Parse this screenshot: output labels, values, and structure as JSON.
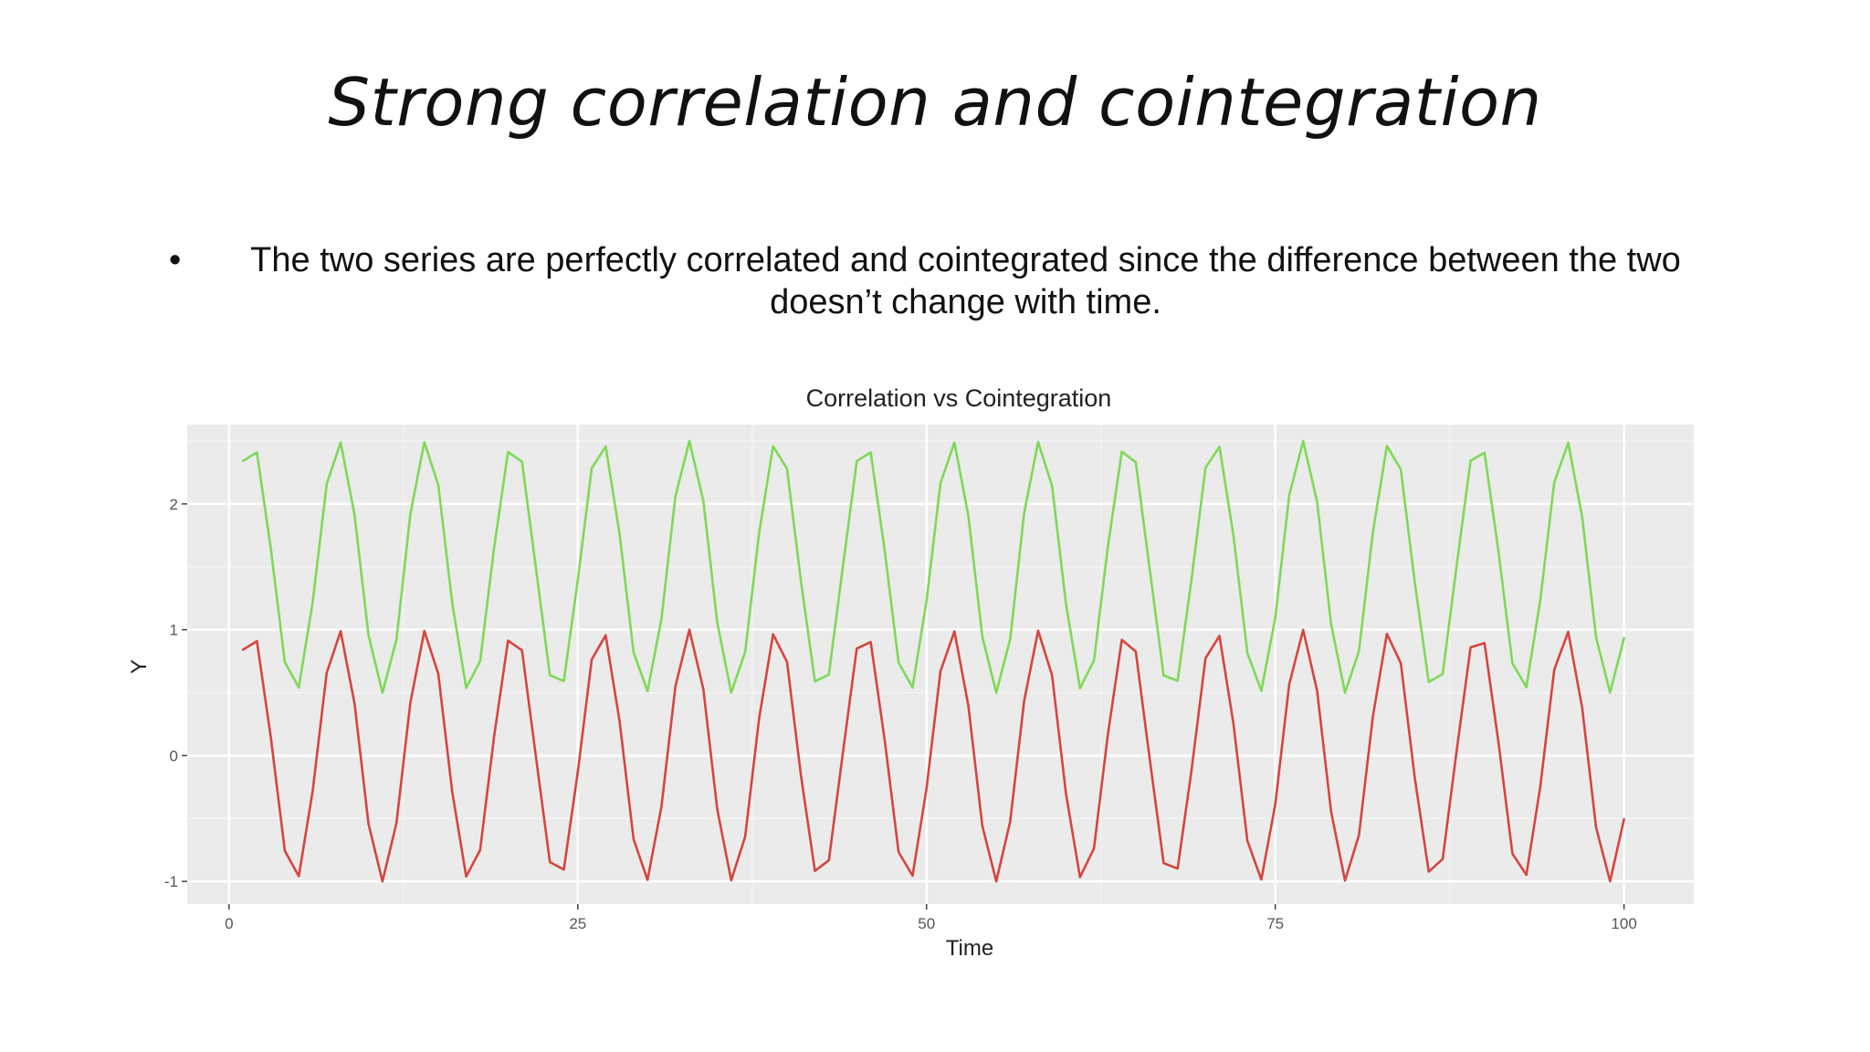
{
  "slide": {
    "title": "Strong correlation and cointegration",
    "bullet_text": "The two series are perfectly correlated and cointegrated since the difference between the two doesn’t change with time."
  },
  "chart_data": {
    "type": "line",
    "title": "Correlation vs Cointegration",
    "xlabel": "Time",
    "ylabel": "Y",
    "xlim": [
      -3,
      105
    ],
    "ylim": [
      -1.18,
      2.63
    ],
    "xticks": [
      0,
      25,
      50,
      75,
      100
    ],
    "yticks": [
      -1,
      0,
      1,
      2
    ],
    "grid": true,
    "background": "#ebebeb",
    "x": [
      1,
      2,
      3,
      4,
      5,
      6,
      7,
      8,
      9,
      10,
      11,
      12,
      13,
      14,
      15,
      16,
      17,
      18,
      19,
      20,
      21,
      22,
      23,
      24,
      25,
      26,
      27,
      28,
      29,
      30,
      31,
      32,
      33,
      34,
      35,
      36,
      37,
      38,
      39,
      40,
      41,
      42,
      43,
      44,
      45,
      46,
      47,
      48,
      49,
      50,
      51,
      52,
      53,
      54,
      55,
      56,
      57,
      58,
      59,
      60,
      61,
      62,
      63,
      64,
      65,
      66,
      67,
      68,
      69,
      70,
      71,
      72,
      73,
      74,
      75,
      76,
      77,
      78,
      79,
      80,
      81,
      82,
      83,
      84,
      85,
      86,
      87,
      88,
      89,
      90,
      91,
      92,
      93,
      94,
      95,
      96,
      97,
      98,
      99,
      100
    ],
    "series": [
      {
        "color": "#7ed957",
        "values": [
          2.341,
          2.409,
          1.641,
          0.743,
          0.541,
          1.221,
          2.157,
          2.489,
          1.912,
          0.956,
          0.5,
          0.92,
          1.92,
          2.491,
          2.15,
          1.212,
          0.537,
          0.75,
          1.65,
          2.413,
          2.336,
          1.49,
          0.639,
          0.592,
          1.394,
          2.284,
          2.456,
          1.759,
          0.82,
          0.512,
          1.087,
          2.06,
          2.5,
          2.024,
          1.055,
          0.5,
          0.825,
          1.768,
          2.459,
          2.279,
          1.386,
          0.589,
          0.644,
          1.499,
          2.34,
          2.41,
          1.632,
          0.738,
          0.542,
          1.23,
          2.164,
          2.488,
          1.904,
          0.946,
          0.5,
          0.927,
          1.929,
          2.492,
          2.143,
          1.203,
          0.535,
          0.755,
          1.659,
          2.416,
          2.331,
          1.48,
          0.636,
          0.595,
          1.403,
          2.289,
          2.454,
          1.75,
          0.815,
          0.514,
          1.096,
          2.068,
          2.5,
          2.016,
          1.046,
          0.5,
          0.831,
          1.777,
          2.461,
          2.274,
          1.377,
          0.585,
          0.648,
          1.508,
          2.344,
          2.406,
          1.623,
          0.733,
          0.544,
          1.239,
          2.171,
          2.486,
          1.895,
          0.938,
          0.501,
          0.934
        ]
      },
      {
        "color": "#d6453d",
        "values": [
          0.841,
          0.909,
          0.141,
          -0.757,
          -0.959,
          -0.279,
          0.657,
          0.989,
          0.412,
          -0.544,
          -1.0,
          -0.537,
          0.42,
          0.991,
          0.65,
          -0.288,
          -0.961,
          -0.751,
          0.15,
          0.913,
          0.837,
          -0.009,
          -0.846,
          -0.906,
          -0.132,
          0.763,
          0.956,
          0.271,
          -0.664,
          -0.988,
          -0.404,
          0.551,
          1.0,
          0.529,
          -0.428,
          -0.991,
          -0.644,
          0.296,
          0.964,
          0.745,
          -0.159,
          -0.917,
          -0.832,
          0.018,
          0.851,
          0.902,
          0.124,
          -0.768,
          -0.954,
          -0.262,
          0.67,
          0.987,
          0.396,
          -0.559,
          -1.0,
          -0.522,
          0.436,
          0.993,
          0.637,
          -0.305,
          -0.966,
          -0.739,
          0.167,
          0.92,
          0.827,
          -0.027,
          -0.855,
          -0.898,
          -0.115,
          0.774,
          0.951,
          0.254,
          -0.677,
          -0.985,
          -0.388,
          0.566,
          0.999,
          0.514,
          -0.444,
          -0.994,
          -0.631,
          0.313,
          0.968,
          0.734,
          -0.176,
          -0.923,
          -0.822,
          0.036,
          0.86,
          0.894,
          0.106,
          -0.779,
          -0.948,
          -0.245,
          0.683,
          0.984,
          0.38,
          -0.573,
          -0.999,
          -0.506
        ]
      }
    ]
  }
}
